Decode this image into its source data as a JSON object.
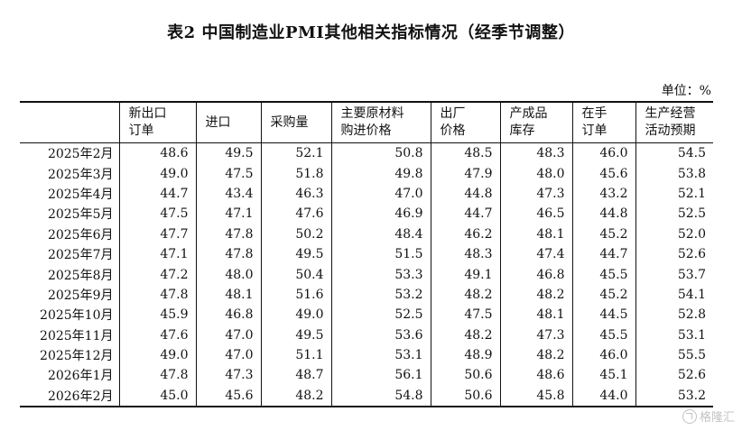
{
  "title": "表2 中国制造业PMI其他相关指标情况（经季节调整）",
  "unit": "单位：%",
  "columns": [
    {
      "line1": "",
      "line2": ""
    },
    {
      "line1": "新出口",
      "line2": "订单"
    },
    {
      "line1": "进口",
      "line2": ""
    },
    {
      "line1": "采购量",
      "line2": ""
    },
    {
      "line1": "主要原材料",
      "line2": "购进价格"
    },
    {
      "line1": "出厂",
      "line2": "价格"
    },
    {
      "line1": "产成品",
      "line2": "库存"
    },
    {
      "line1": "在手",
      "line2": "订单"
    },
    {
      "line1": "生产经营",
      "line2": "活动预期"
    }
  ],
  "rows": [
    {
      "month": "2025年2月",
      "values": [
        "48.6",
        "49.5",
        "52.1",
        "50.8",
        "48.5",
        "48.3",
        "46.0",
        "54.5"
      ]
    },
    {
      "month": "2025年3月",
      "values": [
        "49.0",
        "47.5",
        "51.8",
        "49.8",
        "47.9",
        "48.0",
        "45.6",
        "53.8"
      ]
    },
    {
      "month": "2025年4月",
      "values": [
        "44.7",
        "43.4",
        "46.3",
        "47.0",
        "44.8",
        "47.3",
        "43.2",
        "52.1"
      ]
    },
    {
      "month": "2025年5月",
      "values": [
        "47.5",
        "47.1",
        "47.6",
        "46.9",
        "44.7",
        "46.5",
        "44.8",
        "52.5"
      ]
    },
    {
      "month": "2025年6月",
      "values": [
        "47.7",
        "47.8",
        "50.2",
        "48.4",
        "46.2",
        "48.1",
        "45.2",
        "52.0"
      ]
    },
    {
      "month": "2025年7月",
      "values": [
        "47.1",
        "47.8",
        "49.5",
        "51.5",
        "48.3",
        "47.4",
        "44.7",
        "52.6"
      ]
    },
    {
      "month": "2025年8月",
      "values": [
        "47.2",
        "48.0",
        "50.4",
        "53.3",
        "49.1",
        "46.8",
        "45.5",
        "53.7"
      ]
    },
    {
      "month": "2025年9月",
      "values": [
        "47.8",
        "48.1",
        "51.6",
        "53.2",
        "48.2",
        "48.2",
        "45.2",
        "54.1"
      ]
    },
    {
      "month": "2025年10月",
      "values": [
        "45.9",
        "46.8",
        "49.0",
        "52.5",
        "47.5",
        "48.1",
        "44.5",
        "52.8"
      ]
    },
    {
      "month": "2025年11月",
      "values": [
        "47.6",
        "47.0",
        "49.5",
        "53.6",
        "48.2",
        "47.3",
        "45.5",
        "53.1"
      ]
    },
    {
      "month": "2025年12月",
      "values": [
        "49.0",
        "47.0",
        "51.1",
        "53.1",
        "48.9",
        "48.2",
        "46.0",
        "55.5"
      ]
    },
    {
      "month": "2026年1月",
      "values": [
        "47.8",
        "47.3",
        "48.7",
        "56.1",
        "50.6",
        "48.6",
        "45.1",
        "52.6"
      ]
    },
    {
      "month": "2026年2月",
      "values": [
        "45.0",
        "45.6",
        "48.2",
        "54.8",
        "50.6",
        "45.8",
        "44.0",
        "53.2"
      ]
    }
  ],
  "watermark": "格隆汇"
}
